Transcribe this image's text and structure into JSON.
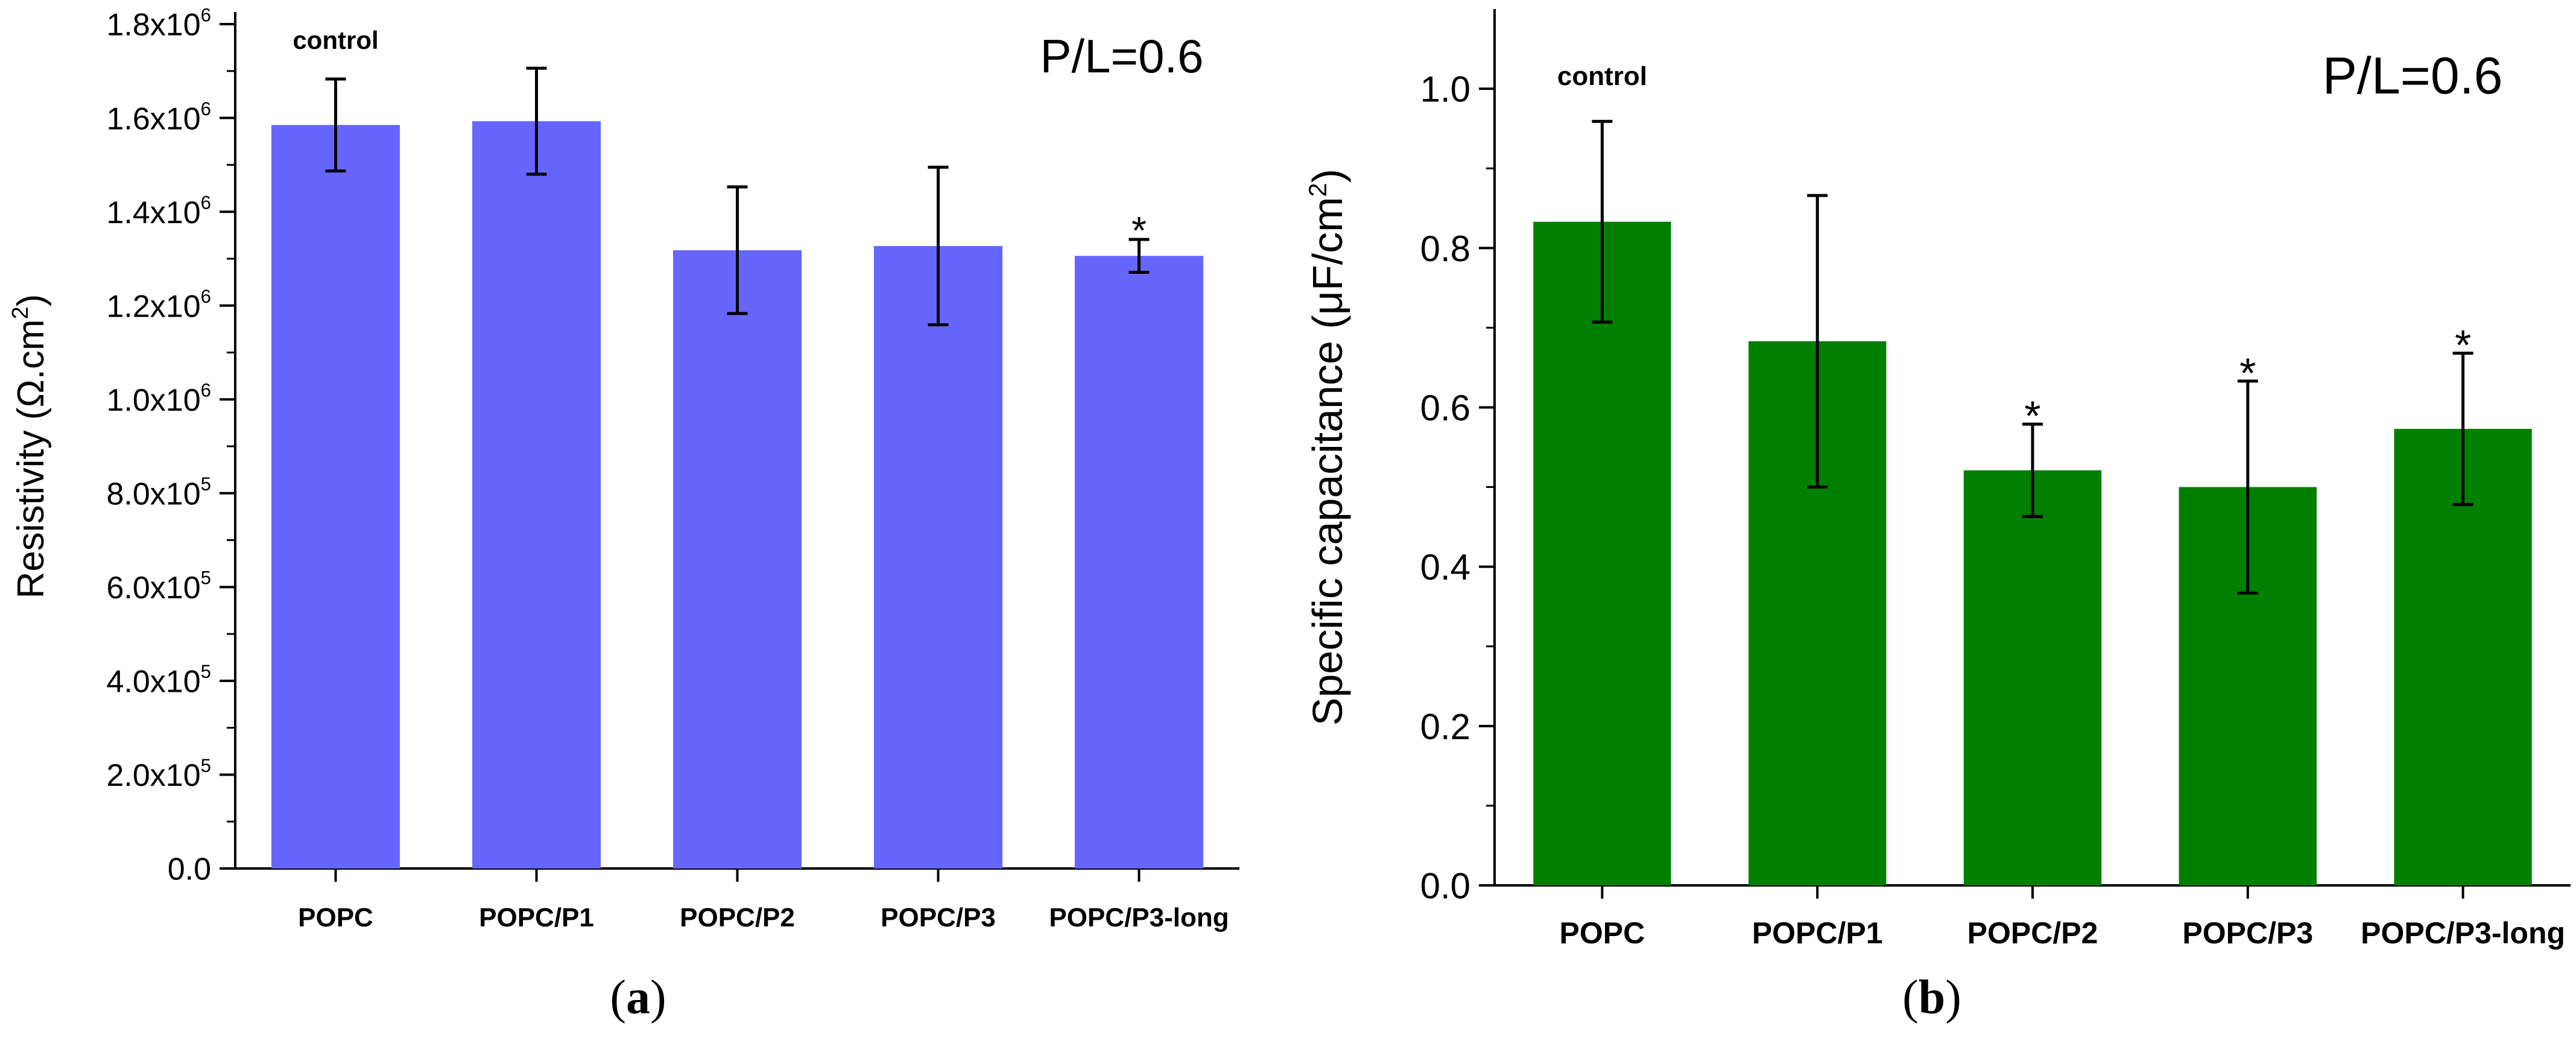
{
  "panels": [
    {
      "label_open": "(",
      "label_letter": "a",
      "label_close": ")"
    },
    {
      "label_open": "(",
      "label_letter": "b",
      "label_close": ")"
    }
  ],
  "chart_data": [
    {
      "type": "bar",
      "color": "#6666ff",
      "title": "",
      "corner_label": "P/L=0.6",
      "xlabel": "",
      "ylabel_main": "Resistivity (Ω.cm",
      "ylabel_sup": "2",
      "ylabel_close": ")",
      "ylim": [
        0,
        1800000.0
      ],
      "yticks": [
        0,
        200000,
        400000,
        600000,
        800000,
        1000000,
        1200000,
        1400000,
        1600000,
        1800000
      ],
      "ytick_labels": [
        {
          "base": "0.0",
          "exp": ""
        },
        {
          "base": "2.0x10",
          "exp": "5"
        },
        {
          "base": "4.0x10",
          "exp": "5"
        },
        {
          "base": "6.0x10",
          "exp": "5"
        },
        {
          "base": "8.0x10",
          "exp": "5"
        },
        {
          "base": "1.0x10",
          "exp": "6"
        },
        {
          "base": "1.2x10",
          "exp": "6"
        },
        {
          "base": "1.4x10",
          "exp": "6"
        },
        {
          "base": "1.6x10",
          "exp": "6"
        },
        {
          "base": "1.8x10",
          "exp": "6"
        }
      ],
      "categories": [
        "POPC",
        "POPC/P1",
        "POPC/P2",
        "POPC/P3",
        "POPC/P3-long"
      ],
      "values": [
        1585000,
        1593000,
        1318000,
        1327000,
        1306000
      ],
      "errors": [
        98000,
        113000,
        135000,
        168000,
        35000
      ],
      "annotations": [
        "control",
        "",
        "",
        "",
        "*"
      ]
    },
    {
      "type": "bar",
      "color": "#007f00",
      "title": "",
      "corner_label": "P/L=0.6",
      "xlabel": "",
      "ylabel_main": "Specific capacitance (μF/cm",
      "ylabel_sup": "2",
      "ylabel_close": ")",
      "ylim": [
        0,
        1.1
      ],
      "yticks": [
        0,
        0.2,
        0.4,
        0.6,
        0.8,
        1.0
      ],
      "ytick_labels": [
        {
          "base": "0.0",
          "exp": ""
        },
        {
          "base": "0.2",
          "exp": ""
        },
        {
          "base": "0.4",
          "exp": ""
        },
        {
          "base": "0.6",
          "exp": ""
        },
        {
          "base": "0.8",
          "exp": ""
        },
        {
          "base": "1.0",
          "exp": ""
        }
      ],
      "categories": [
        "POPC",
        "POPC/P1",
        "POPC/P2",
        "POPC/P3",
        "POPC/P3-long"
      ],
      "values": [
        0.833,
        0.683,
        0.521,
        0.5,
        0.573
      ],
      "errors": [
        0.126,
        0.183,
        0.058,
        0.133,
        0.095
      ],
      "annotations": [
        "control",
        "",
        "*",
        "*",
        "*"
      ]
    }
  ]
}
